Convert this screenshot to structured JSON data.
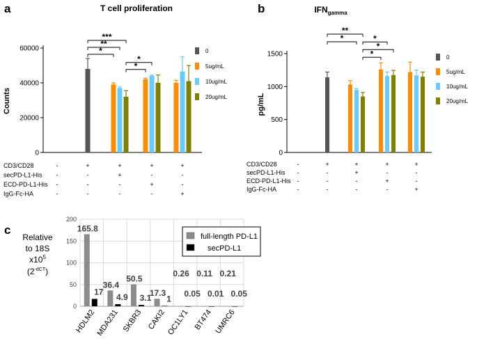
{
  "chart_data": [
    {
      "panel": "a",
      "type": "bar",
      "title": "T cell proliferation",
      "ylabel": "Counts",
      "ylim": [
        0,
        60000
      ],
      "yticks": [
        "0",
        "20000",
        "40000",
        "60000"
      ],
      "ytick_values": [
        0,
        20000,
        40000,
        60000
      ],
      "legend": [
        "0",
        "5ug/mL",
        "10ug/mL",
        "20ug/mL"
      ],
      "colors": [
        "#555555",
        "#ff8c00",
        "#66ccff",
        "#808000"
      ],
      "bars": [
        {
          "group": 1,
          "series": 0,
          "value": 48000,
          "err": 6000
        },
        {
          "group": 2,
          "series": 1,
          "value": 39000,
          "err": 1000
        },
        {
          "group": 2,
          "series": 2,
          "value": 37000,
          "err": 700
        },
        {
          "group": 2,
          "series": 3,
          "value": 32000,
          "err": 3500
        },
        {
          "group": 3,
          "series": 1,
          "value": 42000,
          "err": 700
        },
        {
          "group": 3,
          "series": 2,
          "value": 44000,
          "err": 500
        },
        {
          "group": 3,
          "series": 3,
          "value": 40000,
          "err": 4500
        },
        {
          "group": 4,
          "series": 1,
          "value": 40000,
          "err": 1500
        },
        {
          "group": 4,
          "series": 2,
          "value": 46500,
          "err": 8500
        },
        {
          "group": 4,
          "series": 3,
          "value": 41000,
          "err": 9000
        }
      ],
      "significance": [
        {
          "from": [
            1,
            0
          ],
          "to": [
            2,
            3
          ],
          "label": "***",
          "level": 2
        },
        {
          "from": [
            1,
            0
          ],
          "to": [
            2,
            2
          ],
          "label": "**",
          "level": 1
        },
        {
          "from": [
            1,
            0
          ],
          "to": [
            2,
            1
          ],
          "label": "*",
          "level": 0
        },
        {
          "from": [
            2,
            3
          ],
          "to": [
            3,
            2
          ],
          "label": "*",
          "level": 1
        },
        {
          "from": [
            2,
            3
          ],
          "to": [
            3,
            1
          ],
          "label": "*",
          "level": 0
        }
      ],
      "conditions": [
        {
          "label": "CD3/CD28",
          "marks": [
            "-",
            "+",
            "+",
            "+",
            "+"
          ]
        },
        {
          "label": "secPD-L1-His",
          "marks": [
            "-",
            "-",
            "+",
            "-",
            "-"
          ]
        },
        {
          "label": "ECD-PD-L1-His",
          "marks": [
            "-",
            "-",
            "-",
            "+",
            "-"
          ]
        },
        {
          "label": "IgG-Fc-HA",
          "marks": [
            "-",
            "-",
            "-",
            "-",
            "+"
          ]
        }
      ]
    },
    {
      "panel": "b",
      "type": "bar",
      "title": "IFN",
      "title_sub": "gamma",
      "ylabel": "pg/mL",
      "ylim": [
        0,
        1500
      ],
      "yticks": [
        "0",
        "500",
        "1000",
        "1500"
      ],
      "ytick_values": [
        0,
        500,
        1000,
        1500
      ],
      "legend": [
        "0",
        "5ug/mL",
        "10ug/mL",
        "20ug/mL"
      ],
      "colors": [
        "#555555",
        "#ff8c00",
        "#66ccff",
        "#808000"
      ],
      "bars": [
        {
          "group": 1,
          "series": 0,
          "value": 1140,
          "err": 80
        },
        {
          "group": 2,
          "series": 1,
          "value": 1030,
          "err": 60
        },
        {
          "group": 2,
          "series": 2,
          "value": 950,
          "err": 20
        },
        {
          "group": 2,
          "series": 3,
          "value": 850,
          "err": 60
        },
        {
          "group": 3,
          "series": 1,
          "value": 1260,
          "err": 100
        },
        {
          "group": 3,
          "series": 2,
          "value": 1160,
          "err": 60
        },
        {
          "group": 3,
          "series": 3,
          "value": 1175,
          "err": 70
        },
        {
          "group": 4,
          "series": 1,
          "value": 1220,
          "err": 150
        },
        {
          "group": 4,
          "series": 2,
          "value": 1170,
          "err": 80
        },
        {
          "group": 4,
          "series": 3,
          "value": 1150,
          "err": 70
        }
      ],
      "significance": [
        {
          "from": [
            1,
            0
          ],
          "to": [
            2,
            3
          ],
          "label": "**",
          "level": 1
        },
        {
          "from": [
            1,
            0
          ],
          "to": [
            2,
            2
          ],
          "label": "*",
          "level": 0
        },
        {
          "from": [
            2,
            3
          ],
          "to": [
            3,
            2
          ],
          "label": "*",
          "level": 2
        },
        {
          "from": [
            2,
            3
          ],
          "to": [
            3,
            3
          ],
          "label": "*",
          "level": 1
        },
        {
          "from": [
            2,
            3
          ],
          "to": [
            3,
            1
          ],
          "label": "*",
          "level": 0
        }
      ],
      "conditions": [
        {
          "label": "CD3/CD28",
          "marks": [
            "-",
            "+",
            "+",
            "+",
            "+"
          ]
        },
        {
          "label": "secPD-L1-His",
          "marks": [
            "-",
            "-",
            "+",
            "-",
            "-"
          ]
        },
        {
          "label": "ECD-PD-L1-His",
          "marks": [
            "-",
            "-",
            "-",
            "+",
            "-"
          ]
        },
        {
          "label": "IgG-Fc-HA",
          "marks": [
            "-",
            "-",
            "-",
            "-",
            "+"
          ]
        }
      ]
    },
    {
      "panel": "c",
      "type": "bar",
      "ylabel_lines": [
        "Relative",
        "to 18S"
      ],
      "ylabel_x": "x10",
      "ylabel_x_sup": "5",
      "ylabel_f_open": "(2",
      "ylabel_f_sup": "-dCT",
      "ylabel_f_close": ")",
      "ylim": [
        0,
        200
      ],
      "yticks": [
        "0",
        "50",
        "100",
        "150",
        "200"
      ],
      "ytick_values": [
        0,
        50,
        100,
        150,
        200
      ],
      "categories": [
        "HDLM2",
        "MDA231",
        "SKBR3",
        "CAKI2",
        "OC1LY1",
        "BT474",
        "UMRC6"
      ],
      "series": [
        {
          "name": "full-length PD-L1",
          "color": "#8c8c8c",
          "values": [
            165.8,
            36.4,
            50.5,
            17.3,
            0.26,
            0.11,
            0.21
          ],
          "labels": [
            "165.8",
            "36.4",
            "50.5",
            "17.3",
            "0.26",
            "0.11",
            "0.21"
          ]
        },
        {
          "name": "secPD-L1",
          "color": "#000000",
          "values": [
            17,
            4.9,
            3.1,
            1,
            0.05,
            0.01,
            0.05
          ],
          "labels": [
            "17",
            "4.9",
            "3.1",
            "1",
            "0.05",
            "0.01",
            "0.05"
          ]
        }
      ]
    }
  ]
}
